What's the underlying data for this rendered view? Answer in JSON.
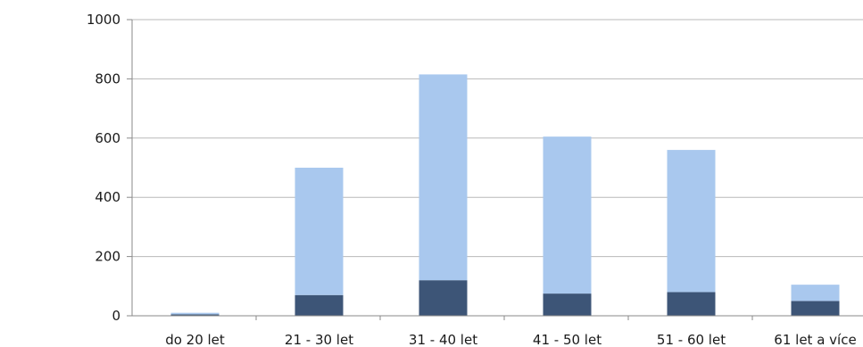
{
  "chart_data": {
    "type": "bar",
    "stacked": true,
    "categories": [
      "do 20 let",
      "21 - 30 let",
      "31 - 40 let",
      "41 - 50 let",
      "51 - 60 let",
      "61 let a více"
    ],
    "series": [
      {
        "values": [
          5,
          70,
          120,
          75,
          80,
          50
        ],
        "color": "#3d5577"
      },
      {
        "values": [
          5,
          430,
          695,
          530,
          480,
          55
        ],
        "color": "#a9c8ee"
      }
    ],
    "ylim": [
      0,
      1000
    ],
    "yticks": [
      0,
      200,
      400,
      600,
      800,
      1000
    ],
    "grid": true,
    "legend": "none"
  }
}
